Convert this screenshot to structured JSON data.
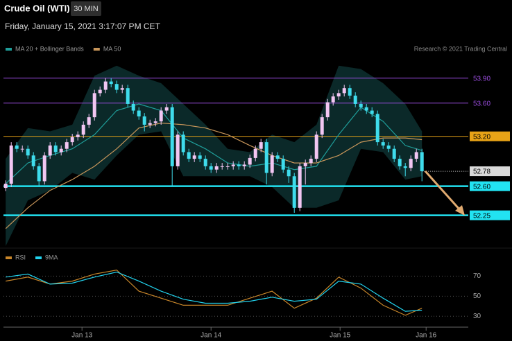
{
  "chart_data": [
    {
      "type": "candlestick",
      "title": "Crude Oil (WTI)",
      "interval": "30 MIN",
      "timestamp": "Friday, January 15, 2021 3:17:07 PM CET",
      "credit": "Research © 2021 Trading Central",
      "xlim": [
        -0.4,
        83.35
      ],
      "ylim": [
        51.88,
        54.09
      ],
      "up_color": "#f2c6f2",
      "down_color": "#3fdcec",
      "open": [
        52.58,
        52.63,
        53.09,
        53.05,
        53.05,
        52.97,
        52.84,
        52.66,
        52.97,
        53.09,
        53.01,
        53.05,
        53.13,
        53.19,
        53.22,
        53.34,
        53.43,
        53.72,
        53.76,
        53.86,
        53.83,
        53.76,
        53.78,
        53.59,
        53.51,
        53.44,
        53.34,
        53.36,
        53.38,
        53.51,
        53.55,
        52.84,
        53.22,
        53.01,
        52.93,
        52.97,
        52.93,
        52.84,
        52.8,
        52.84,
        52.84,
        52.84,
        52.86,
        52.84,
        52.86,
        52.94,
        53.05,
        53.13,
        52.76,
        52.97,
        52.93,
        52.8,
        52.72,
        52.34,
        52.84,
        52.88,
        52.93,
        53.22,
        53.43,
        53.61,
        53.68,
        53.72,
        53.78,
        53.69,
        53.59,
        53.55,
        53.51,
        53.47,
        53.13,
        53.09,
        53.05,
        52.93,
        52.84,
        52.82,
        52.93,
        53.01
      ],
      "high": [
        52.67,
        53.13,
        53.13,
        53.09,
        53.09,
        53.01,
        52.88,
        53.01,
        53.13,
        53.13,
        53.09,
        53.17,
        53.23,
        53.26,
        53.38,
        53.47,
        53.76,
        53.8,
        53.9,
        53.9,
        53.87,
        53.82,
        53.82,
        53.63,
        53.55,
        53.48,
        53.4,
        53.42,
        53.55,
        53.59,
        53.59,
        53.26,
        53.26,
        53.05,
        53.01,
        53.01,
        52.97,
        52.88,
        52.88,
        52.88,
        52.88,
        52.9,
        52.9,
        52.9,
        52.98,
        53.09,
        53.17,
        53.17,
        53.01,
        53.01,
        52.97,
        52.84,
        52.76,
        52.88,
        52.92,
        52.97,
        53.26,
        53.47,
        53.65,
        53.72,
        53.76,
        53.82,
        53.82,
        53.73,
        53.63,
        53.59,
        53.55,
        53.51,
        53.17,
        53.13,
        53.09,
        52.97,
        52.88,
        52.97,
        53.05,
        53.05
      ],
      "low": [
        52.54,
        52.59,
        53.01,
        53.01,
        52.93,
        52.8,
        52.6,
        52.62,
        52.93,
        52.97,
        52.97,
        53.01,
        53.09,
        53.15,
        53.18,
        53.3,
        53.39,
        53.68,
        53.72,
        53.79,
        53.72,
        53.72,
        53.55,
        53.47,
        53.4,
        53.26,
        53.3,
        53.32,
        53.34,
        53.47,
        52.6,
        52.8,
        52.97,
        52.89,
        52.89,
        52.89,
        52.8,
        52.76,
        52.76,
        52.8,
        52.8,
        52.8,
        52.8,
        52.8,
        52.82,
        52.9,
        53.01,
        52.62,
        52.72,
        52.89,
        52.76,
        52.64,
        52.28,
        52.3,
        52.62,
        52.84,
        52.89,
        53.18,
        53.39,
        53.57,
        53.64,
        53.68,
        53.65,
        53.55,
        53.51,
        53.47,
        53.43,
        53.09,
        53.05,
        53.01,
        52.89,
        52.8,
        52.72,
        52.78,
        52.89,
        52.66
      ],
      "close": [
        52.63,
        53.09,
        53.05,
        53.05,
        52.97,
        52.84,
        52.66,
        52.97,
        53.09,
        53.01,
        53.05,
        53.13,
        53.19,
        53.22,
        53.34,
        53.43,
        53.72,
        53.76,
        53.86,
        53.83,
        53.76,
        53.78,
        53.59,
        53.51,
        53.44,
        53.34,
        53.36,
        53.38,
        53.51,
        53.55,
        52.84,
        53.22,
        53.01,
        52.93,
        52.97,
        52.93,
        52.84,
        52.8,
        52.84,
        52.84,
        52.84,
        52.86,
        52.84,
        52.86,
        52.94,
        53.05,
        53.13,
        52.76,
        52.97,
        52.93,
        52.8,
        52.72,
        52.34,
        52.84,
        52.88,
        52.93,
        53.22,
        53.43,
        53.61,
        53.68,
        53.72,
        53.78,
        53.69,
        53.59,
        53.55,
        53.51,
        53.47,
        53.13,
        53.09,
        53.05,
        52.93,
        52.84,
        52.82,
        52.93,
        53.01,
        52.78
      ],
      "series": [
        {
          "name": "MA 20 + Bollinger Bands",
          "color": "#1f9e9a",
          "band_color": "#0f3a3a",
          "x": [
            0,
            4,
            8,
            12,
            16,
            20,
            24,
            28,
            32,
            36,
            40,
            44,
            48,
            52,
            56,
            60,
            64,
            68,
            72,
            75
          ],
          "values": [
            52.63,
            52.88,
            52.97,
            53.05,
            53.22,
            53.51,
            53.59,
            53.51,
            53.18,
            53.05,
            52.88,
            52.84,
            52.88,
            52.8,
            52.84,
            53.22,
            53.55,
            53.38,
            53.09,
            53.03
          ],
          "upper": [
            52.93,
            53.3,
            53.26,
            53.34,
            53.93,
            54.05,
            53.93,
            53.84,
            53.59,
            53.34,
            53.05,
            53.01,
            53.22,
            53.13,
            53.34,
            54.05,
            54.01,
            53.84,
            53.59,
            53.26
          ],
          "lower": [
            51.88,
            52.43,
            52.55,
            52.76,
            52.68,
            52.97,
            53.22,
            53.26,
            52.72,
            52.72,
            52.72,
            52.72,
            52.59,
            52.34,
            52.34,
            52.43,
            53.05,
            53.01,
            52.68,
            52.72
          ]
        },
        {
          "name": "MA 50",
          "color": "#c8965a",
          "x": [
            0,
            4,
            8,
            12,
            16,
            20,
            24,
            28,
            32,
            36,
            40,
            44,
            48,
            52,
            56,
            60,
            64,
            68,
            72,
            75
          ],
          "values": [
            52.09,
            52.34,
            52.55,
            52.68,
            52.84,
            53.05,
            53.3,
            53.36,
            53.34,
            53.3,
            53.22,
            53.09,
            52.97,
            52.88,
            52.88,
            52.97,
            53.13,
            53.18,
            53.18,
            53.16
          ]
        }
      ],
      "levels": [
        {
          "value": 53.9,
          "label": "53.90",
          "color": "#9b4de0",
          "box": false
        },
        {
          "value": 53.6,
          "label": "53.60",
          "color": "#9b4de0",
          "box": false
        },
        {
          "value": 53.2,
          "label": "53.20",
          "color": "#e8a317",
          "box": true
        },
        {
          "value": 52.78,
          "color": "#d9d9d9",
          "box": true,
          "dotted": true
        },
        {
          "value": 52.6,
          "label": "52.60",
          "color": "#22e3f2",
          "box": true
        },
        {
          "value": 52.25,
          "color": "#22e3f2",
          "box": true
        }
      ]
    },
    {
      "type": "line",
      "xlim": [
        -0.4,
        83.35
      ],
      "ylim": [
        24,
        93
      ],
      "yticks": [
        70,
        50,
        30
      ],
      "xticks": [
        {
          "value": 13.75,
          "label": "Jan 13"
        },
        {
          "value": 37,
          "label": "Jan 14"
        },
        {
          "value": 60.25,
          "label": "Jan 15"
        },
        {
          "value": 75.75,
          "label": "Jan 16"
        }
      ],
      "series": [
        {
          "name": "RSI",
          "color": "#c8862a",
          "x": [
            0,
            4,
            8,
            12,
            16,
            20,
            24,
            28,
            32,
            36,
            40,
            44,
            48,
            52,
            56,
            60,
            64,
            68,
            72,
            75
          ],
          "values": [
            65,
            69,
            62,
            65,
            72,
            76,
            55,
            48,
            41,
            41,
            41,
            48,
            55,
            38,
            48,
            69,
            58,
            41,
            31,
            38
          ]
        },
        {
          "name": "9MA",
          "color": "#22d3ee",
          "x": [
            0,
            4,
            8,
            12,
            16,
            20,
            24,
            28,
            32,
            36,
            40,
            44,
            48,
            52,
            56,
            60,
            64,
            68,
            72,
            75
          ],
          "values": [
            69,
            72,
            62,
            63,
            69,
            74,
            65,
            55,
            47,
            43,
            43,
            45,
            49,
            45,
            47,
            65,
            62,
            48,
            35,
            36
          ]
        }
      ]
    }
  ]
}
